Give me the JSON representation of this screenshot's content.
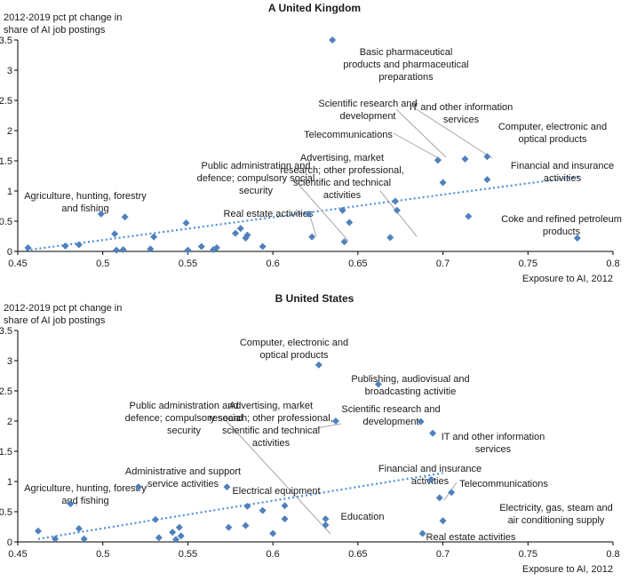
{
  "chart_data": [
    {
      "type": "scatter",
      "panel": "A",
      "title": "United Kingdom",
      "ylabel": [
        "2012-2019 pct pt change in",
        "share of AI job postings"
      ],
      "xlabel": "Exposure to AI, 2012",
      "xlim": [
        0.45,
        0.8
      ],
      "ylim": [
        0,
        3.5
      ],
      "xticks": [
        "0.45",
        "0.5",
        "0.55",
        "0.6",
        "0.65",
        "0.7",
        "0.75",
        "0.8"
      ],
      "yticks": [
        "0",
        "0.5",
        "1",
        "1.5",
        "2",
        "2.5",
        "3",
        "3.5"
      ],
      "trendline": {
        "x": [
          0.455,
          0.78
        ],
        "y": [
          0.02,
          1.24
        ]
      },
      "points": [
        {
          "x": 0.456,
          "y": 0.06
        },
        {
          "x": 0.478,
          "y": 0.09
        },
        {
          "x": 0.486,
          "y": 0.11
        },
        {
          "x": 0.499,
          "y": 0.62
        },
        {
          "x": 0.507,
          "y": 0.29
        },
        {
          "x": 0.508,
          "y": 0.02
        },
        {
          "x": 0.512,
          "y": 0.03
        },
        {
          "x": 0.513,
          "y": 0.57
        },
        {
          "x": 0.528,
          "y": 0.04
        },
        {
          "x": 0.53,
          "y": 0.24
        },
        {
          "x": 0.549,
          "y": 0.47
        },
        {
          "x": 0.55,
          "y": 0.02
        },
        {
          "x": 0.558,
          "y": 0.08
        },
        {
          "x": 0.565,
          "y": 0.03
        },
        {
          "x": 0.567,
          "y": 0.06
        },
        {
          "x": 0.578,
          "y": 0.3
        },
        {
          "x": 0.581,
          "y": 0.38
        },
        {
          "x": 0.584,
          "y": 0.22
        },
        {
          "x": 0.585,
          "y": 0.27
        },
        {
          "x": 0.594,
          "y": 0.08
        },
        {
          "x": 0.621,
          "y": 0.62
        },
        {
          "x": 0.623,
          "y": 0.24
        },
        {
          "x": 0.635,
          "y": 3.5
        },
        {
          "x": 0.641,
          "y": 0.68
        },
        {
          "x": 0.642,
          "y": 0.16
        },
        {
          "x": 0.645,
          "y": 0.48
        },
        {
          "x": 0.669,
          "y": 0.23
        },
        {
          "x": 0.672,
          "y": 0.83
        },
        {
          "x": 0.673,
          "y": 0.68
        },
        {
          "x": 0.697,
          "y": 1.51
        },
        {
          "x": 0.7,
          "y": 1.14
        },
        {
          "x": 0.713,
          "y": 1.53
        },
        {
          "x": 0.715,
          "y": 0.58
        },
        {
          "x": 0.726,
          "y": 1.57
        },
        {
          "x": 0.726,
          "y": 1.19
        },
        {
          "x": 0.779,
          "y": 0.22
        }
      ],
      "annotations": [
        {
          "lines": [
            "Basic pharmaceutical",
            "products and pharmaceutical",
            "preparations"
          ],
          "point": [
            0.635,
            3.5
          ],
          "leader": false
        },
        {
          "lines": [
            "Scientific research and",
            "development"
          ],
          "point": [
            0.7,
            1.14
          ],
          "leader": true
        },
        {
          "lines": [
            "IT and other information",
            "services"
          ],
          "point": [
            0.713,
            1.53
          ],
          "leader": true
        },
        {
          "lines": [
            "Computer, electronic and",
            "optical products"
          ],
          "point": [
            0.726,
            1.57
          ],
          "leader": false
        },
        {
          "lines": [
            "Telecommunications"
          ],
          "point": [
            0.697,
            1.51
          ],
          "leader": true
        },
        {
          "lines": [
            "Financial and insurance",
            "activities"
          ],
          "point": [
            0.726,
            1.19
          ],
          "leader": false
        },
        {
          "lines": [
            "Advertising, market",
            "research; other professional,",
            "scientific and technical",
            "activities"
          ],
          "point": [
            0.669,
            0.23
          ],
          "leader": true
        },
        {
          "lines": [
            "Public administration and",
            "defence; compulsory social",
            "security"
          ],
          "point": [
            0.642,
            0.16
          ],
          "leader": true
        },
        {
          "lines": [
            "Real estate activities"
          ],
          "point": [
            0.623,
            0.24
          ],
          "leader": true
        },
        {
          "lines": [
            "Agriculture, hunting, forestry",
            "and fishing"
          ],
          "point": [
            0.499,
            0.62
          ],
          "leader": false
        },
        {
          "lines": [
            "Coke and refined petroleum",
            "products"
          ],
          "point": [
            0.779,
            0.22
          ],
          "leader": false
        }
      ]
    },
    {
      "type": "scatter",
      "panel": "B",
      "title": "United States",
      "ylabel": [
        "2012-2019 pct pt change in",
        "share of AI job postings"
      ],
      "xlabel": "Exposure to AI, 2012",
      "xlim": [
        0.45,
        0.8
      ],
      "ylim": [
        0,
        3.5
      ],
      "xticks": [
        "0.45",
        "0.5",
        "0.55",
        "0.6",
        "0.65",
        "0.7",
        "0.75",
        "0.8"
      ],
      "yticks": [
        "0",
        "0.5",
        "1",
        "1.5",
        "2",
        "2.5",
        "3",
        "3.5"
      ],
      "trendline": {
        "x": [
          0.462,
          0.7
        ],
        "y": [
          0.05,
          1.14
        ]
      },
      "points": [
        {
          "x": 0.462,
          "y": 0.18
        },
        {
          "x": 0.472,
          "y": 0.05
        },
        {
          "x": 0.481,
          "y": 0.63
        },
        {
          "x": 0.486,
          "y": 0.22
        },
        {
          "x": 0.489,
          "y": 0.05
        },
        {
          "x": 0.521,
          "y": 0.91
        },
        {
          "x": 0.531,
          "y": 0.37
        },
        {
          "x": 0.533,
          "y": 0.07
        },
        {
          "x": 0.541,
          "y": 0.16
        },
        {
          "x": 0.543,
          "y": 0.04
        },
        {
          "x": 0.545,
          "y": 0.24
        },
        {
          "x": 0.546,
          "y": 0.1
        },
        {
          "x": 0.573,
          "y": 0.91
        },
        {
          "x": 0.574,
          "y": 0.24
        },
        {
          "x": 0.584,
          "y": 0.27
        },
        {
          "x": 0.585,
          "y": 0.59
        },
        {
          "x": 0.594,
          "y": 0.52
        },
        {
          "x": 0.6,
          "y": 0.14
        },
        {
          "x": 0.607,
          "y": 0.6
        },
        {
          "x": 0.607,
          "y": 0.38
        },
        {
          "x": 0.627,
          "y": 2.93
        },
        {
          "x": 0.631,
          "y": 0.38
        },
        {
          "x": 0.631,
          "y": 0.28
        },
        {
          "x": 0.637,
          "y": 2.0
        },
        {
          "x": 0.662,
          "y": 2.61
        },
        {
          "x": 0.687,
          "y": 1.99
        },
        {
          "x": 0.688,
          "y": 0.14
        },
        {
          "x": 0.694,
          "y": 1.8
        },
        {
          "x": 0.693,
          "y": 1.03
        },
        {
          "x": 0.698,
          "y": 0.73
        },
        {
          "x": 0.7,
          "y": 0.35
        },
        {
          "x": 0.705,
          "y": 0.82
        }
      ],
      "annotations": [
        {
          "lines": [
            "Computer, electronic and",
            "optical products"
          ],
          "point": [
            0.627,
            2.93
          ],
          "leader": false
        },
        {
          "lines": [
            "Publishing, audiovisual and",
            "broadcasting activitie"
          ],
          "point": [
            0.662,
            2.61
          ],
          "leader": false
        },
        {
          "lines": [
            "Public administration and",
            "defence; compulsory social",
            "security"
          ],
          "point": [
            0.631,
            0.28
          ],
          "leader": true
        },
        {
          "lines": [
            "Advertising, market",
            "research; other professional,",
            "scientific and technical",
            "activities"
          ],
          "point": [
            0.637,
            2.0
          ],
          "leader": true
        },
        {
          "lines": [
            "Scientific research and",
            "development"
          ],
          "point": [
            0.687,
            1.99
          ],
          "leader": false
        },
        {
          "lines": [
            "IT and other information",
            "services"
          ],
          "point": [
            0.694,
            1.8
          ],
          "leader": false
        },
        {
          "lines": [
            "Financial and insurance",
            "activities"
          ],
          "point": [
            0.693,
            1.03
          ],
          "leader": false
        },
        {
          "lines": [
            "Telecommunications"
          ],
          "point": [
            0.698,
            0.73
          ],
          "leader": true
        },
        {
          "lines": [
            "Electricity, gas, steam and",
            "air conditioning supply"
          ],
          "point": [
            0.7,
            0.35
          ],
          "leader": false
        },
        {
          "lines": [
            "Real estate activities"
          ],
          "point": [
            0.688,
            0.14
          ],
          "leader": false
        },
        {
          "lines": [
            "Administrative and support",
            "service activities"
          ],
          "point": [
            0.521,
            0.91
          ],
          "leader": true
        },
        {
          "lines": [
            "Electrical equipment"
          ],
          "point": [
            0.573,
            0.91
          ],
          "leader": false
        },
        {
          "lines": [
            "Agriculture, hunting, forestry",
            "and fishing"
          ],
          "point": [
            0.481,
            0.63
          ],
          "leader": true
        },
        {
          "lines": [
            "Education"
          ],
          "point": [
            0.631,
            0.38
          ],
          "leader": false
        }
      ]
    }
  ]
}
